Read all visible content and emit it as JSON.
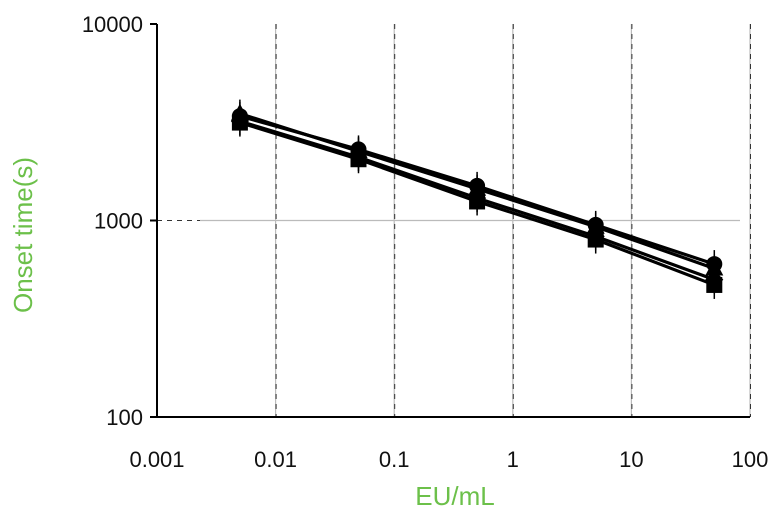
{
  "chart_data": {
    "type": "line",
    "title": "",
    "xlabel": "EU/mL",
    "ylabel": "Onset time(s)",
    "xscale": "log",
    "yscale": "log",
    "xlim": [
      0.001,
      100
    ],
    "ylim": [
      100,
      10000
    ],
    "x_ticks": [
      0.001,
      0.01,
      0.1,
      1,
      10,
      100
    ],
    "x_tick_labels": [
      "0.001",
      "0.01",
      "0.1",
      "1",
      "10",
      "100"
    ],
    "y_ticks": [
      100,
      1000,
      10000
    ],
    "y_tick_labels": [
      "100",
      "1000",
      "10000"
    ],
    "grid": "on",
    "legend": "none",
    "label_color": "#6cc04a",
    "line_color": "#000000",
    "series": [
      {
        "marker": "circle",
        "x": [
          0.005,
          0.05,
          0.5,
          5,
          50
        ],
        "y": [
          3400,
          2300,
          1500,
          950,
          600
        ]
      },
      {
        "marker": "triangle",
        "x": [
          0.005,
          0.05,
          0.5,
          5,
          50
        ],
        "y": [
          3500,
          2250,
          1450,
          930,
          570
        ]
      },
      {
        "marker": "diamond",
        "x": [
          0.005,
          0.05,
          0.5,
          5,
          50
        ],
        "y": [
          3200,
          2100,
          1300,
          830,
          500
        ]
      },
      {
        "marker": "square",
        "x": [
          0.005,
          0.05,
          0.5,
          5,
          50
        ],
        "y": [
          3150,
          2050,
          1250,
          800,
          470
        ]
      }
    ]
  }
}
